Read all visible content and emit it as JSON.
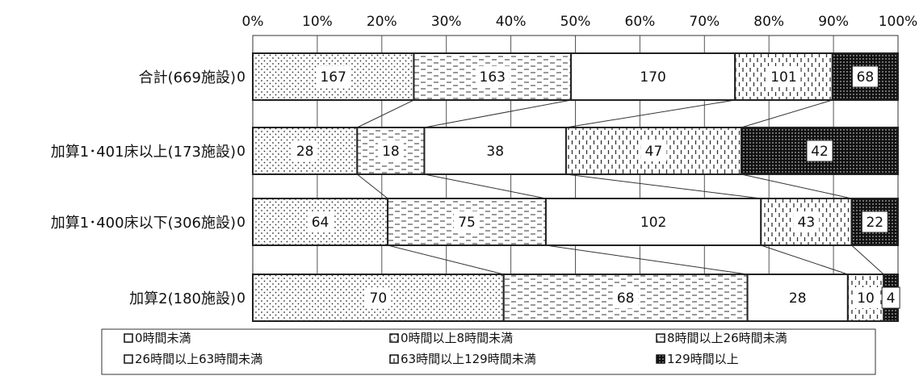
{
  "chart_data": {
    "type": "bar",
    "orientation": "horizontal",
    "stacked": "percent",
    "x_tick_labels": [
      "0%",
      "10%",
      "20%",
      "30%",
      "40%",
      "50%",
      "60%",
      "70%",
      "80%",
      "90%",
      "100%"
    ],
    "xlim": [
      0,
      100
    ],
    "categories": [
      "合計(669施設)",
      "加算1･401床以上(173施設)",
      "加算1･400床以下(306施設)",
      "加算2(180施設)"
    ],
    "series": [
      {
        "name": "0時間未満",
        "values": [
          0,
          0,
          0,
          0
        ],
        "pattern": "none"
      },
      {
        "name": "0時間以上8時間未満",
        "values": [
          167,
          28,
          64,
          70
        ],
        "pattern": "dots"
      },
      {
        "name": "8時間以上26時間未満",
        "values": [
          163,
          18,
          75,
          68
        ],
        "pattern": "dashes"
      },
      {
        "name": "26時間以上63時間未満",
        "values": [
          170,
          38,
          102,
          28
        ],
        "pattern": "none"
      },
      {
        "name": "63時間以上129時間未満",
        "values": [
          101,
          47,
          43,
          10
        ],
        "pattern": "dashed-vertical"
      },
      {
        "name": "129時間以上",
        "values": [
          68,
          42,
          22,
          4
        ],
        "pattern": "dense-dots"
      }
    ],
    "gridlines": true,
    "series_connector_lines": true,
    "legend_position": "bottom"
  }
}
